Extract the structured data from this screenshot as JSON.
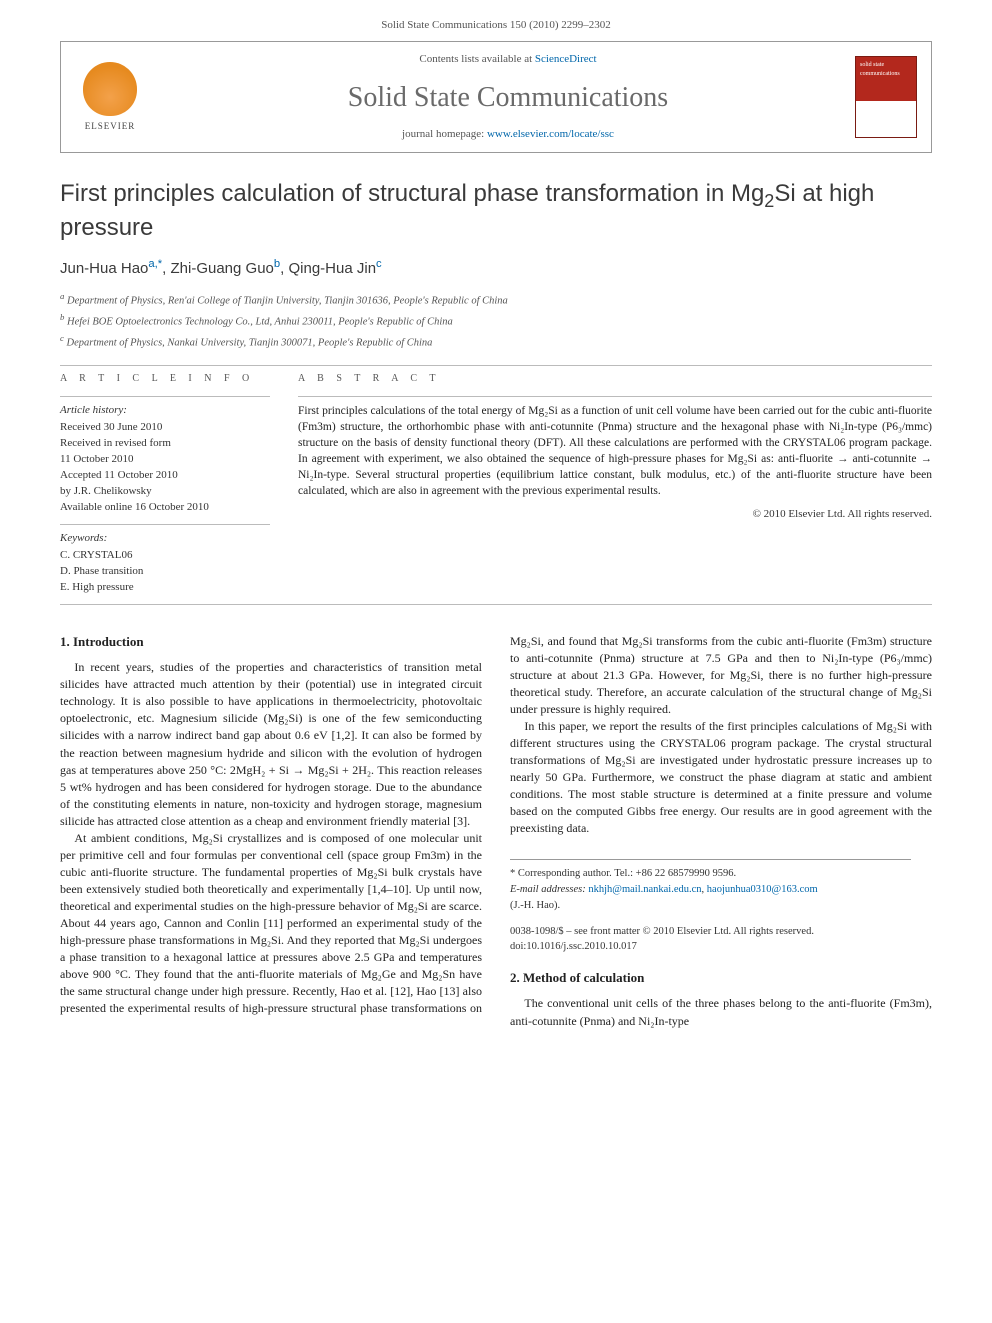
{
  "header": {
    "citation": "Solid State Communications 150 (2010) 2299–2302",
    "contents_prefix": "Contents lists available at ",
    "contents_link": "ScienceDirect",
    "journal_name": "Solid State Communications",
    "homepage_prefix": "journal homepage: ",
    "homepage_link": "www.elsevier.com/locate/ssc",
    "elsevier_label": "ELSEVIER",
    "cover_text": "solid state communications"
  },
  "article": {
    "title_pre": "First principles calculation of structural phase transformation in Mg",
    "title_sub": "2",
    "title_post": "Si at high pressure",
    "authors_html": "Jun-Hua Hao|a,*|, Zhi-Guang Guo|b|, Qing-Hua Jin|c|",
    "authors": [
      {
        "name": "Jun-Hua Hao",
        "affil": "a,*"
      },
      {
        "name": "Zhi-Guang Guo",
        "affil": "b"
      },
      {
        "name": "Qing-Hua Jin",
        "affil": "c"
      }
    ],
    "affiliations": [
      {
        "mark": "a",
        "text": "Department of Physics, Ren'ai College of Tianjin University, Tianjin 301636, People's Republic of China"
      },
      {
        "mark": "b",
        "text": "Hefei BOE Optoelectronics Technology Co., Ltd, Anhui 230011, People's Republic of China"
      },
      {
        "mark": "c",
        "text": "Department of Physics, Nankai University, Tianjin 300071, People's Republic of China"
      }
    ]
  },
  "info": {
    "heading": "a r t i c l e   i n f o",
    "history_label": "Article history:",
    "history": "Received 30 June 2010\nReceived in revised form\n11 October 2010\nAccepted 11 October 2010\nby J.R. Chelikowsky\nAvailable online 16 October 2010",
    "keywords_label": "Keywords:",
    "keywords": "C. CRYSTAL06\nD. Phase transition\nE. High pressure"
  },
  "abstract": {
    "heading": "a b s t r a c t",
    "text": "First principles calculations of the total energy of Mg₂Si as a function of unit cell volume have been carried out for the cubic anti-fluorite (Fm3m) structure, the orthorhombic phase with anti-cotunnite (Pnma) structure and the hexagonal phase with Ni₂In-type (P6₃/mmc) structure on the basis of density functional theory (DFT). All these calculations are performed with the CRYSTAL06 program package. In agreement with experiment, we also obtained the sequence of high-pressure phases for Mg₂Si as: anti-fluorite → anti-cotunnite → Ni₂In-type. Several structural properties (equilibrium lattice constant, bulk modulus, etc.) of the anti-fluorite structure have been calculated, which are also in agreement with the previous experimental results.",
    "copyright": "© 2010 Elsevier Ltd. All rights reserved."
  },
  "sections": {
    "s1_title": "1. Introduction",
    "s1_p1": "In recent years, studies of the properties and characteristics of transition metal silicides have attracted much attention by their (potential) use in integrated circuit technology. It is also possible to have applications in thermoelectricity, photovoltaic optoelectronic, etc. Magnesium silicide (Mg₂Si) is one of the few semiconducting silicides with a narrow indirect band gap about 0.6 eV [1,2]. It can also be formed by the reaction between magnesium hydride and silicon with the evolution of hydrogen gas at temperatures above 250 °C: 2MgH₂ + Si → Mg₂Si + 2H₂. This reaction releases 5 wt% hydrogen and has been considered for hydrogen storage. Due to the abundance of the constituting elements in nature, non-toxicity and hydrogen storage, magnesium silicide has attracted close attention as a cheap and environment friendly material [3].",
    "s1_p2": "At ambient conditions, Mg₂Si crystallizes and is composed of one molecular unit per primitive cell and four formulas per conventional cell (space group Fm3m) in the cubic anti-fluorite structure. The fundamental properties of Mg₂Si bulk crystals have been extensively studied both theoretically and experimentally [1,4–10]. Up until now, theoretical and experimental studies on the high-pressure behavior of Mg₂Si are scarce. About 44 years ago, Cannon and Conlin [11] performed an experimental study of the high-pressure phase transformations in Mg₂Si. And they reported that Mg₂Si undergoes a phase transition to a hexagonal lattice at pressures above 2.5 GPa and temperatures above 900 °C. They found that the anti-fluorite materials of Mg₂Ge and Mg₂Sn have the same structural change under high pressure. Recently, Hao et al. [12], Hao [13] also presented the experimental results of high-pressure structural phase transformations on Mg₂Si, and found that Mg₂Si transforms from the cubic anti-fluorite (Fm3m) structure to anti-cotunnite (Pnma) structure at 7.5 GPa and then to Ni₂In-type (P6₃/mmc) structure at about 21.3 GPa. However, for Mg₂Si, there is no further high-pressure theoretical study. Therefore, an accurate calculation of the structural change of Mg₂Si under pressure is highly required.",
    "s1_p3": "In this paper, we report the results of the first principles calculations of Mg₂Si with different structures using the CRYSTAL06 program package. The crystal structural transformations of Mg₂Si are investigated under hydrostatic pressure increases up to nearly 50 GPa. Furthermore, we construct the phase diagram at static and ambient conditions. The most stable structure is determined at a finite pressure and volume based on the computed Gibbs free energy. Our results are in good agreement with the preexisting data.",
    "s2_title": "2. Method of calculation",
    "s2_p1": "The conventional unit cells of the three phases belong to the anti-fluorite (Fm3m), anti-cotunnite (Pnma) and Ni₂In-type"
  },
  "footer": {
    "corr_label": "* Corresponding author. Tel.: +86 22 68579990 9596.",
    "email_label": "E-mail addresses:",
    "email1": "nkhjh@mail.nankai.edu.cn",
    "email2": "haojunhua0310@163.com",
    "email_tail": "(J.-H. Hao).",
    "issn_line": "0038-1098/$ – see front matter © 2010 Elsevier Ltd. All rights reserved.",
    "doi_line": "doi:10.1016/j.ssc.2010.10.017"
  },
  "colors": {
    "link": "#0066aa",
    "text": "#333333",
    "accent": "#b3281d"
  }
}
